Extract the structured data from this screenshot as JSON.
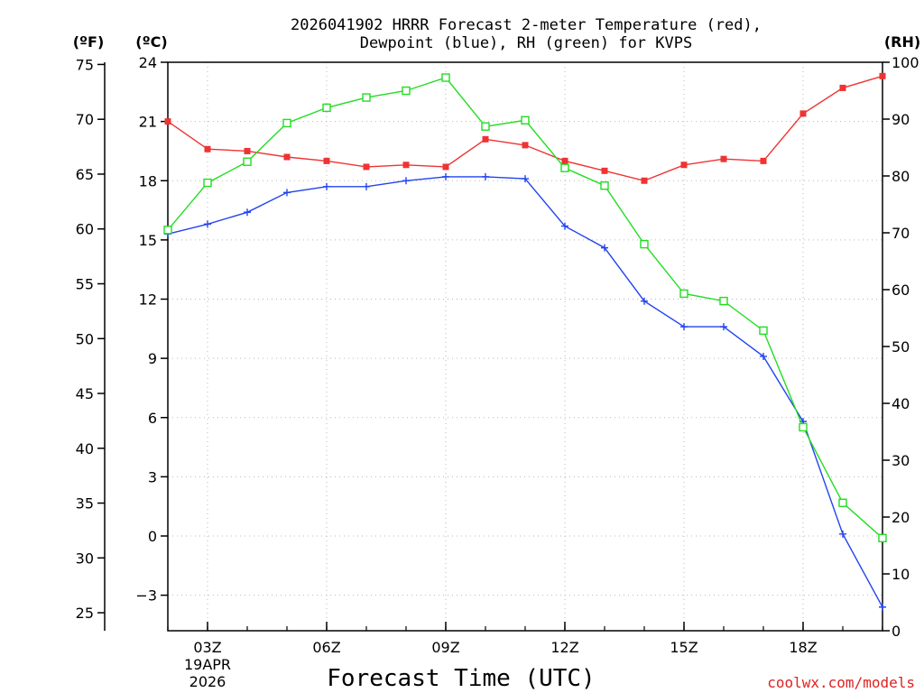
{
  "chart_data": {
    "type": "line",
    "title_lines": [
      "2026041902 HRRR Forecast 2-meter Temperature (red),",
      "Dewpoint (blue), RH (green) for KVPS"
    ],
    "xlabel": "Forecast Time (UTC)",
    "credit": "coolwx.com/models",
    "date_lines": [
      "19APR",
      "2026"
    ],
    "x_hours": [
      2,
      3,
      4,
      5,
      6,
      7,
      8,
      9,
      10,
      11,
      12,
      13,
      14,
      15,
      16,
      17,
      18,
      19,
      20
    ],
    "x_ticks": [
      {
        "hour": 3,
        "label": "03Z"
      },
      {
        "hour": 6,
        "label": "06Z"
      },
      {
        "hour": 9,
        "label": "09Z"
      },
      {
        "hour": 12,
        "label": "12Z"
      },
      {
        "hour": 15,
        "label": "15Z"
      },
      {
        "hour": 18,
        "label": "18Z"
      }
    ],
    "x_range": [
      2,
      20
    ],
    "axes": {
      "celsius": {
        "unit_label": "(ºC)",
        "range": [
          -4.8,
          24
        ],
        "ticks": [
          24,
          21,
          18,
          15,
          12,
          9,
          6,
          3,
          0,
          -3
        ]
      },
      "fahrenheit": {
        "unit_label": "(ºF)",
        "ticks": [
          75,
          70,
          65,
          60,
          55,
          50,
          45,
          40,
          35,
          30,
          25
        ]
      },
      "rh": {
        "unit_label": "(RH)",
        "range": [
          0,
          100
        ],
        "ticks": [
          100,
          90,
          80,
          70,
          60,
          50,
          40,
          30,
          20,
          10,
          0
        ]
      }
    },
    "grid": true,
    "series": [
      {
        "name": "Temperature",
        "axis": "celsius",
        "color": "#ee3333",
        "marker": "filled-square",
        "values": [
          21.0,
          19.6,
          19.5,
          19.2,
          19.0,
          18.7,
          18.8,
          18.7,
          20.1,
          19.8,
          19.0,
          18.5,
          18.0,
          18.8,
          19.1,
          19.0,
          21.4,
          22.7,
          23.3
        ]
      },
      {
        "name": "Dewpoint",
        "axis": "celsius",
        "color": "#2244ee",
        "marker": "plus",
        "values": [
          15.3,
          15.8,
          16.4,
          17.4,
          17.7,
          17.7,
          18.0,
          18.2,
          18.2,
          18.1,
          15.7,
          14.6,
          11.9,
          10.6,
          10.6,
          9.1,
          5.8,
          0.1,
          -3.6
        ]
      },
      {
        "name": "RH",
        "axis": "rh",
        "color": "#22dd22",
        "marker": "open-square",
        "values": [
          70.5,
          78.8,
          82.5,
          89.3,
          92.0,
          93.8,
          95.0,
          97.3,
          88.7,
          89.8,
          81.4,
          78.3,
          68.0,
          59.3,
          58.0,
          52.8,
          35.8,
          22.5,
          16.3
        ]
      }
    ]
  }
}
